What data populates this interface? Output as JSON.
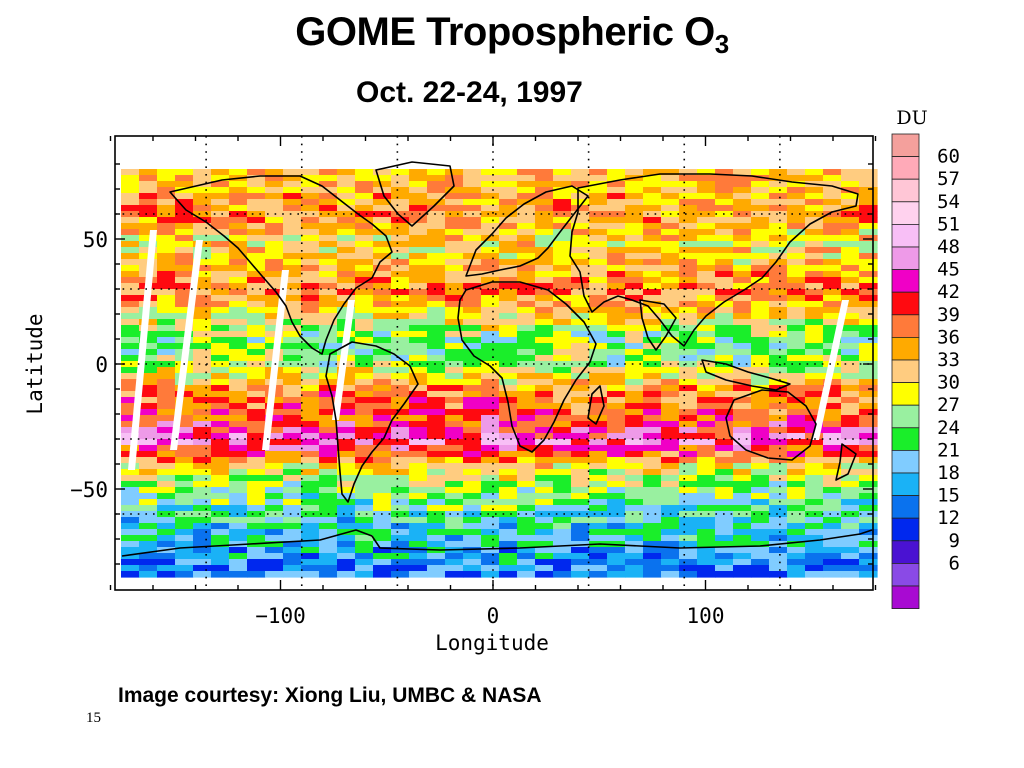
{
  "slide": {
    "title": "GOME Tropospheric O",
    "title_sub": "3",
    "subtitle": "Oct. 22-24, 1997",
    "credit": "Image courtesy: Xiong Liu, UMBC & NASA",
    "slide_number": "15"
  },
  "chart_data": {
    "type": "heatmap",
    "title": "GOME Tropospheric O3",
    "subtitle": "Oct. 22-24, 1997",
    "xlabel": "Longitude",
    "ylabel": "Latitude",
    "xlim": [
      -180,
      180
    ],
    "ylim": [
      -90,
      90
    ],
    "xticks": [
      -100,
      0,
      100
    ],
    "yticks": [
      -50,
      0,
      50
    ],
    "grid": true,
    "colorbar": {
      "unit": "DU",
      "placement": "right",
      "labels": [
        60,
        57,
        54,
        51,
        48,
        45,
        42,
        39,
        36,
        33,
        30,
        27,
        24,
        21,
        18,
        15,
        12,
        9,
        6
      ],
      "colors": [
        "#f4a09c",
        "#ffaab8",
        "#ffc6d6",
        "#ffd2ee",
        "#f8bff6",
        "#ee9ae8",
        "#f000c6",
        "#ff0a10",
        "#ff7a3a",
        "#ffaa00",
        "#ffcc80",
        "#ffff00",
        "#99f0a0",
        "#1aee2a",
        "#80ccff",
        "#1ab2f6",
        "#0a72ee",
        "#0028ee",
        "#4a12d2",
        "#8a4ae6",
        "#a80ad2"
      ]
    },
    "latitude_profile": [
      {
        "lat": 70,
        "value": 33
      },
      {
        "lat": 60,
        "value": 36
      },
      {
        "lat": 50,
        "value": 30
      },
      {
        "lat": 40,
        "value": 33
      },
      {
        "lat": 30,
        "value": 36
      },
      {
        "lat": 20,
        "value": 30
      },
      {
        "lat": 10,
        "value": 24
      },
      {
        "lat": 0,
        "value": 27
      },
      {
        "lat": -10,
        "value": 36
      },
      {
        "lat": -20,
        "value": 39
      },
      {
        "lat": -30,
        "value": 45
      },
      {
        "lat": -40,
        "value": 30
      },
      {
        "lat": -50,
        "value": 24
      },
      {
        "lat": -60,
        "value": 21
      },
      {
        "lat": -70,
        "value": 18
      },
      {
        "lat": -80,
        "value": 15
      }
    ]
  }
}
